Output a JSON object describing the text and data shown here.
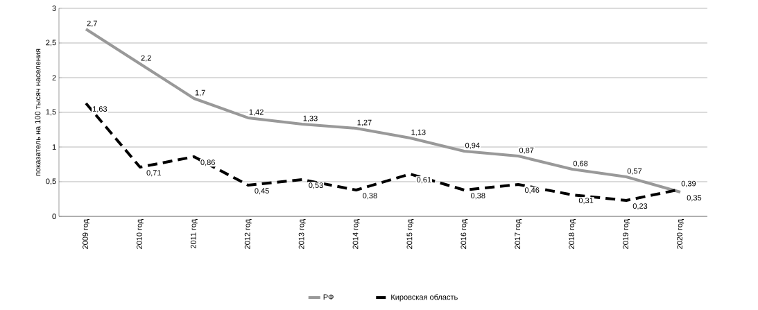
{
  "chart_data": {
    "type": "line",
    "ylabel": "показатель на 100 тысяч населения",
    "categories": [
      "2009 год",
      "2010 год",
      "2011 год",
      "2012 год",
      "2013 год",
      "2014 год",
      "2015 год",
      "2016 год",
      "2017 год",
      "2018 год",
      "2019 год",
      "2020 год"
    ],
    "series": [
      {
        "name": "РФ",
        "color": "#999999",
        "line_style": "solid",
        "values": [
          2.7,
          2.2,
          1.7,
          1.42,
          1.33,
          1.27,
          1.13,
          0.94,
          0.87,
          0.68,
          0.57,
          0.35
        ],
        "value_labels": [
          "2,7",
          "2,2",
          "1,7",
          "1,42",
          "1,33",
          "1,27",
          "1,13",
          "0,94",
          "0,87",
          "0,68",
          "0,57",
          "0,35"
        ]
      },
      {
        "name": "Кировская область",
        "color": "#000000",
        "line_style": "dashed",
        "values": [
          1.63,
          0.71,
          0.86,
          0.45,
          0.53,
          0.38,
          0.61,
          0.38,
          0.46,
          0.31,
          0.23,
          0.39
        ],
        "value_labels": [
          "1,63",
          "0,71",
          "0,86",
          "0,45",
          "0,53",
          "0,38",
          "0,61",
          "0,38",
          "0,46",
          "0,31",
          "0,23",
          "0,39"
        ]
      }
    ],
    "ylim": [
      0,
      3
    ],
    "yticks": [
      0,
      {
        "value": 0.5,
        "label": "0,5"
      },
      1,
      {
        "value": 1.5,
        "label": "1,5"
      },
      2,
      {
        "value": 2.5,
        "label": "2,5"
      },
      3
    ],
    "grid": "y",
    "legend": "bottom",
    "marker": "none"
  }
}
